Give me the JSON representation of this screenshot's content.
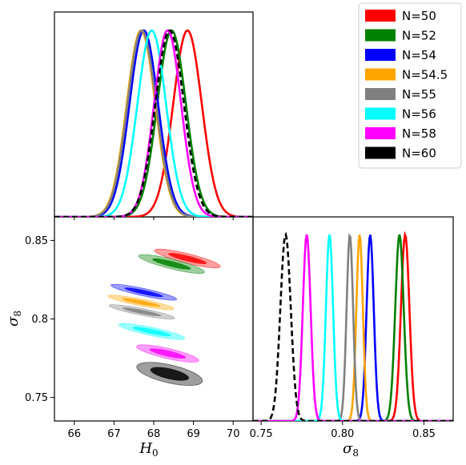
{
  "chart_data": {
    "type": "corner",
    "series": [
      {
        "name": "N=50",
        "color": "#ff0000",
        "dashed": false,
        "H0_mean": 68.85,
        "H0_sd": 0.36,
        "s8_mean": 0.8385,
        "s8_sd": 0.0026,
        "corr": -0.85
      },
      {
        "name": "N=52",
        "color": "#008000",
        "dashed": false,
        "H0_mean": 68.45,
        "H0_sd": 0.36,
        "s8_mean": 0.835,
        "s8_sd": 0.0026,
        "corr": -0.85
      },
      {
        "name": "N=54",
        "color": "#0000ff",
        "dashed": false,
        "H0_mean": 67.75,
        "H0_sd": 0.36,
        "s8_mean": 0.817,
        "s8_sd": 0.0022,
        "corr": -0.88
      },
      {
        "name": "N=54.5",
        "color": "#ffa500",
        "dashed": false,
        "H0_mean": 67.68,
        "H0_sd": 0.36,
        "s8_mean": 0.8105,
        "s8_sd": 0.002,
        "corr": -0.88
      },
      {
        "name": "N=55",
        "color": "#808080",
        "dashed": false,
        "H0_mean": 67.7,
        "H0_sd": 0.36,
        "s8_mean": 0.8045,
        "s8_sd": 0.002,
        "corr": -0.88
      },
      {
        "name": "N=56",
        "color": "#00ffff",
        "dashed": false,
        "H0_mean": 67.95,
        "H0_sd": 0.36,
        "s8_mean": 0.792,
        "s8_sd": 0.0022,
        "corr": -0.85
      },
      {
        "name": "N=58",
        "color": "#ff00ff",
        "dashed": false,
        "H0_mean": 68.35,
        "H0_sd": 0.34,
        "s8_mean": 0.778,
        "s8_sd": 0.0024,
        "corr": -0.8
      },
      {
        "name": "N=60",
        "color": "#000000",
        "dashed": true,
        "H0_mean": 68.4,
        "H0_sd": 0.36,
        "s8_mean": 0.765,
        "s8_sd": 0.0032,
        "corr": -0.6
      }
    ],
    "x_H0": {
      "label": "H",
      "label_sub": "0",
      "range": [
        65.5,
        70.5
      ],
      "ticks": [
        66,
        67,
        68,
        69,
        70
      ],
      "tick_labels": [
        "66",
        "67",
        "68",
        "69",
        "70"
      ]
    },
    "x_sigma8": {
      "label": "σ",
      "label_sub": "8",
      "range": [
        0.745,
        0.868
      ],
      "ticks": [
        0.75,
        0.8,
        0.85
      ],
      "tick_labels": [
        "0.75",
        "0.80",
        "0.85"
      ]
    },
    "y_sigma8": {
      "label": "σ",
      "label_sub": "8",
      "range": [
        0.735,
        0.865
      ],
      "ticks": [
        0.75,
        0.8,
        0.85
      ],
      "tick_labels": [
        "0.75",
        "0.8",
        "0.85"
      ]
    },
    "legend_position": "top-right",
    "grid": false
  }
}
